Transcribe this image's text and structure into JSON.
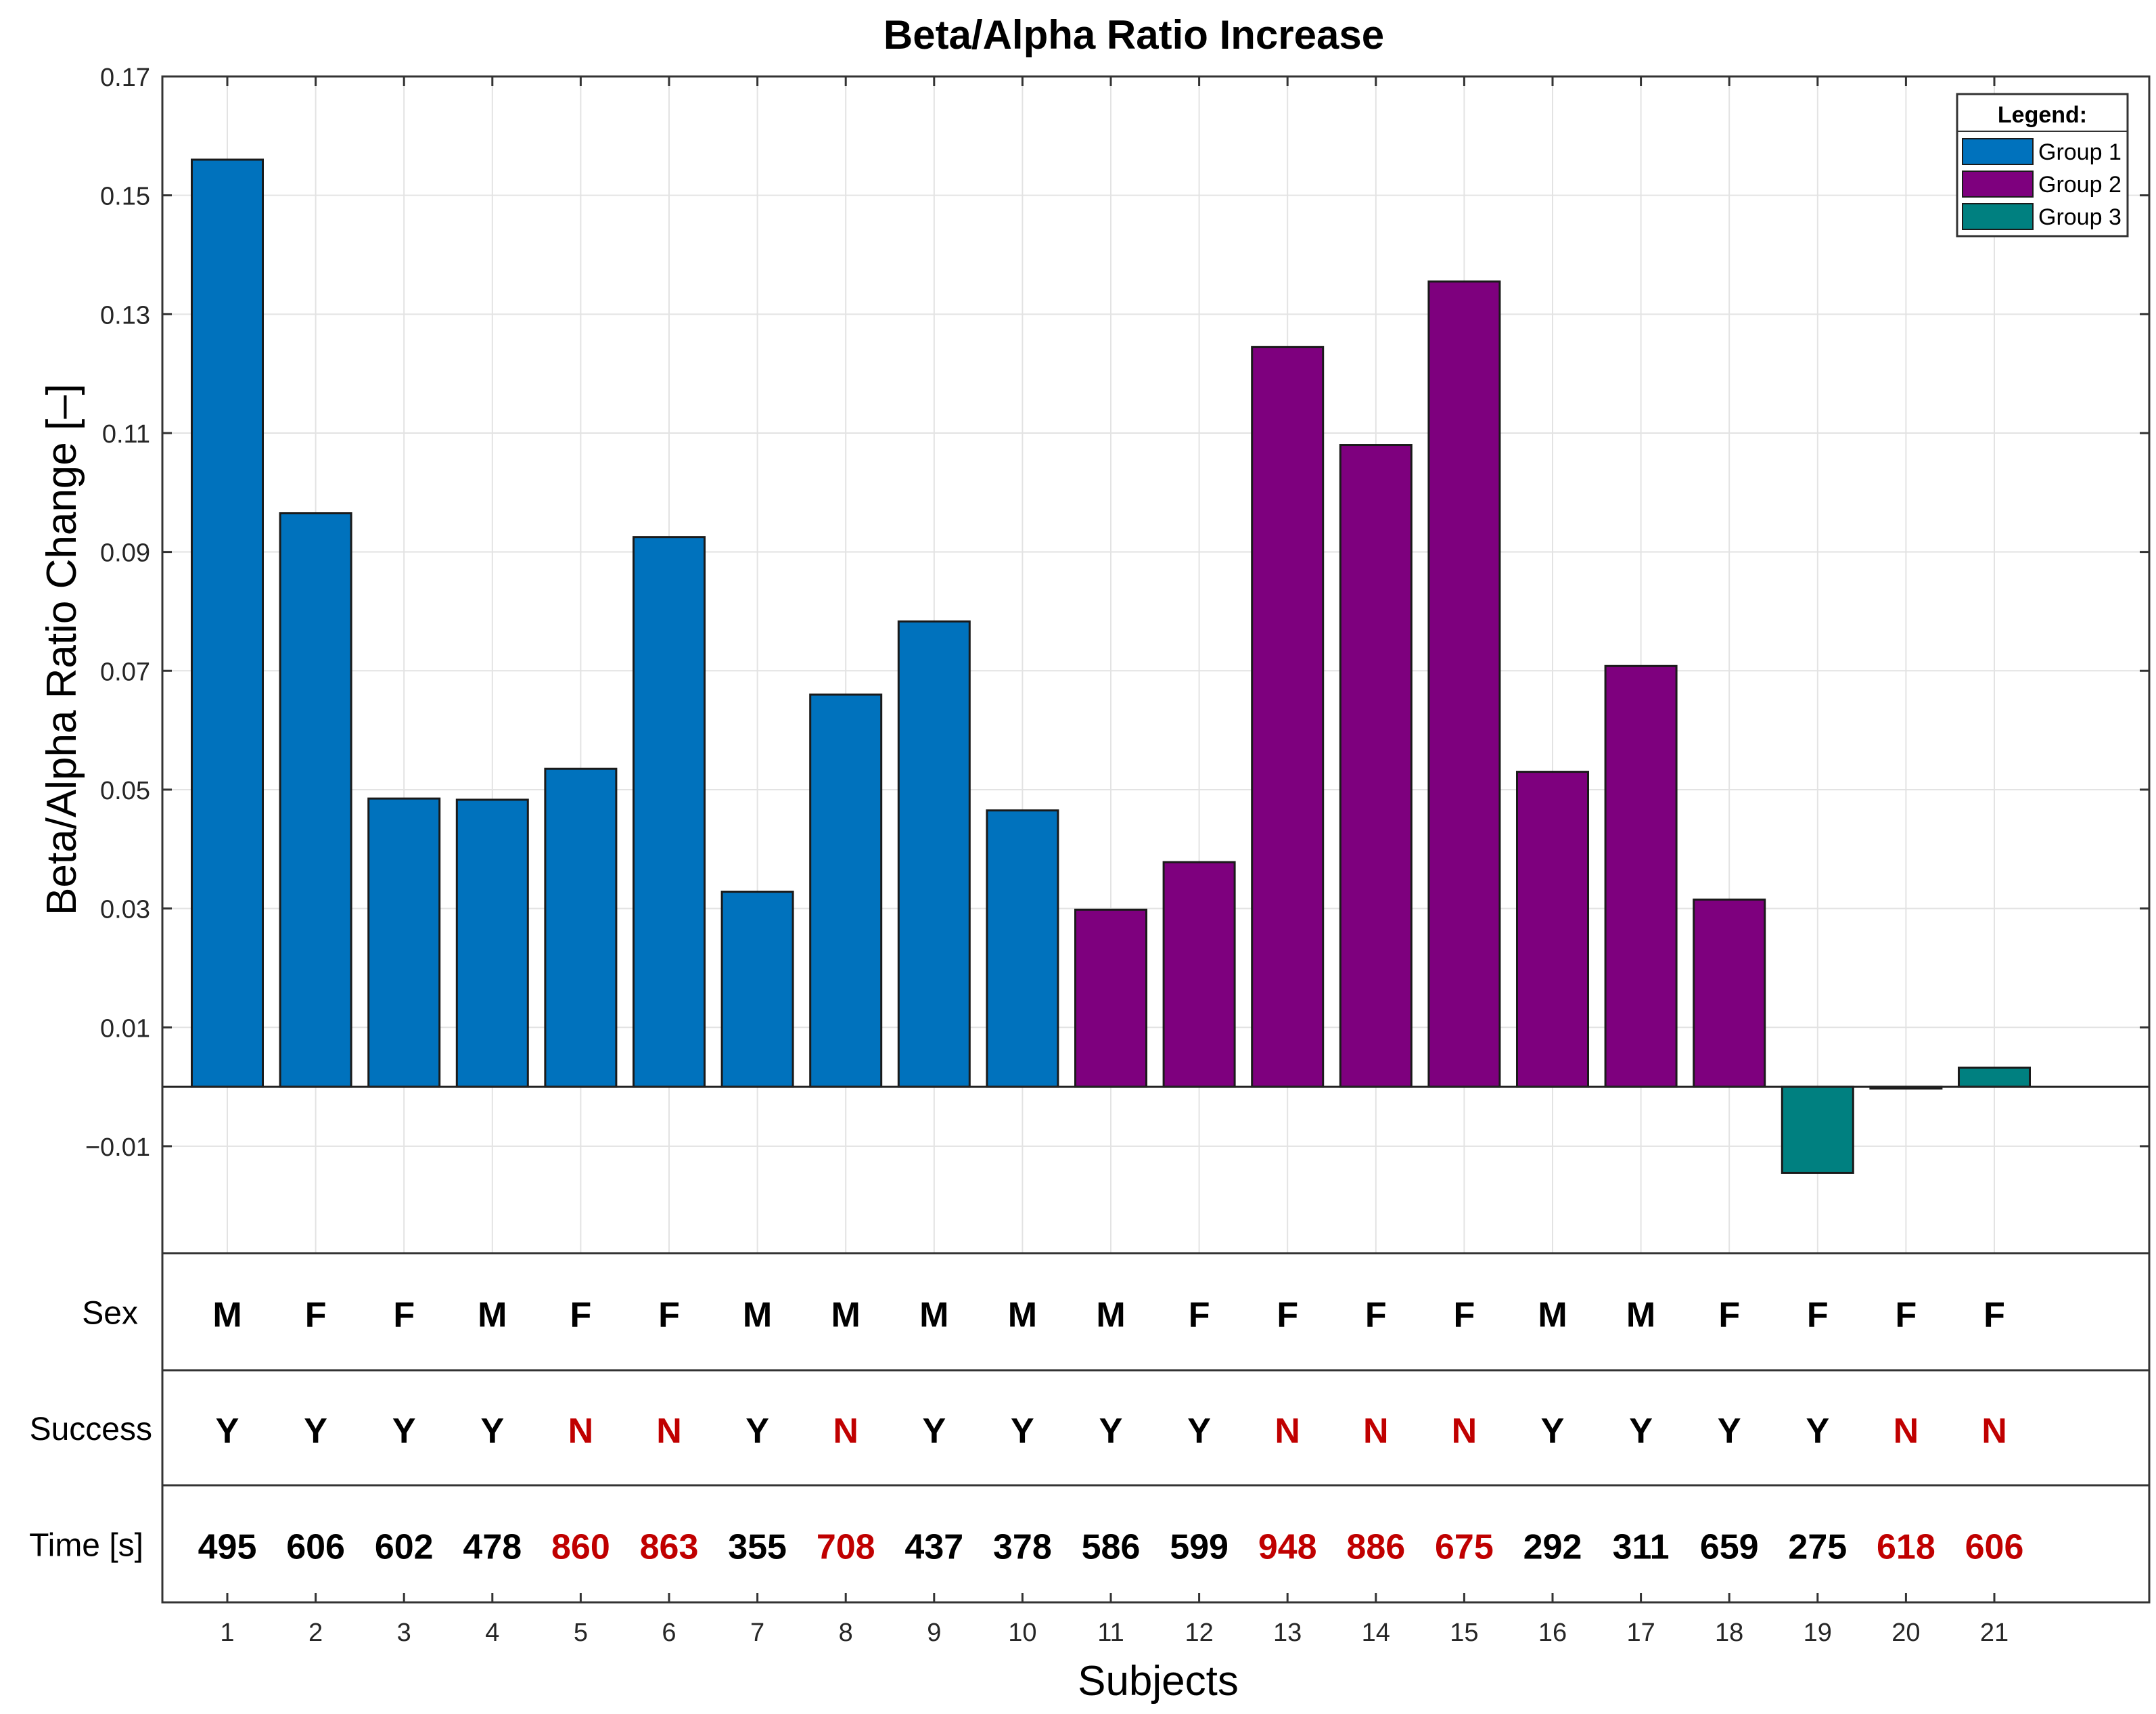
{
  "chart_data": {
    "type": "bar",
    "title": "Beta/Alpha Ratio Increase",
    "xlabel": "Subjects",
    "ylabel": "Beta/Alpha Ratio Change [–]",
    "ylim": [
      -0.028,
      0.17
    ],
    "yticks": [
      -0.01,
      0.01,
      0.03,
      0.05,
      0.07,
      0.09,
      0.11,
      0.13,
      0.15,
      0.17
    ],
    "ytick_labels": [
      "−0.01",
      "0.01",
      "0.03",
      "0.05",
      "0.07",
      "0.09",
      "0.11",
      "0.13",
      "0.15",
      "0.17"
    ],
    "grid": true,
    "categories": [
      "1",
      "2",
      "3",
      "4",
      "5",
      "6",
      "7",
      "8",
      "9",
      "10",
      "11",
      "12",
      "13",
      "14",
      "15",
      "16",
      "17",
      "18",
      "19",
      "20",
      "21"
    ],
    "values": [
      0.156,
      0.0965,
      0.0485,
      0.0483,
      0.0535,
      0.0925,
      0.0328,
      0.066,
      0.0783,
      0.0465,
      0.0298,
      0.0378,
      0.1245,
      0.108,
      0.1355,
      0.053,
      0.0708,
      0.0315,
      -0.0145,
      -0.0003,
      0.0032
    ],
    "groups": [
      "Group 1",
      "Group 1",
      "Group 1",
      "Group 1",
      "Group 1",
      "Group 1",
      "Group 1",
      "Group 1",
      "Group 1",
      "Group 1",
      "Group 2",
      "Group 2",
      "Group 2",
      "Group 2",
      "Group 2",
      "Group 2",
      "Group 2",
      "Group 2",
      "Group 3",
      "Group 3",
      "Group 3"
    ],
    "series": [
      {
        "name": "Group 1",
        "color": "#0072BD",
        "subjects": [
          "1",
          "2",
          "3",
          "4",
          "5",
          "6",
          "7",
          "8",
          "9",
          "10"
        ]
      },
      {
        "name": "Group 2",
        "color": "#7E007E",
        "subjects": [
          "11",
          "12",
          "13",
          "14",
          "15",
          "16",
          "17",
          "18"
        ]
      },
      {
        "name": "Group 3",
        "color": "#008080",
        "subjects": [
          "19",
          "20",
          "21"
        ]
      }
    ],
    "legend": {
      "title": "Legend:",
      "placement": "top-right"
    },
    "table_rows": [
      {
        "label": "Sex",
        "values": [
          "M",
          "F",
          "F",
          "M",
          "F",
          "F",
          "M",
          "M",
          "M",
          "M",
          "M",
          "F",
          "F",
          "F",
          "F",
          "M",
          "M",
          "F",
          "F",
          "F",
          "F"
        ]
      },
      {
        "label": "Success",
        "values": [
          "Y",
          "Y",
          "Y",
          "Y",
          "N",
          "N",
          "Y",
          "N",
          "Y",
          "Y",
          "Y",
          "Y",
          "N",
          "N",
          "N",
          "Y",
          "Y",
          "Y",
          "Y",
          "N",
          "N"
        ]
      },
      {
        "label": "Time [s]",
        "values": [
          "495",
          "606",
          "602",
          "478",
          "860",
          "863",
          "355",
          "708",
          "437",
          "378",
          "586",
          "599",
          "948",
          "886",
          "675",
          "292",
          "311",
          "659",
          "275",
          "618",
          "606"
        ]
      }
    ],
    "highlight_failed_color": "#C00000",
    "normal_text_color": "#000000"
  }
}
